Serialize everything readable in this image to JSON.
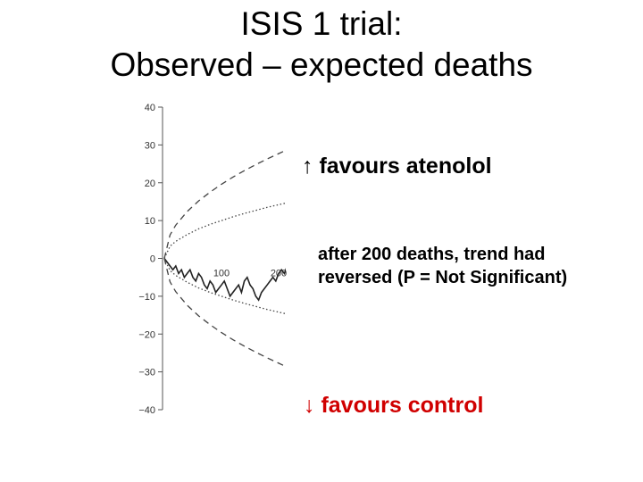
{
  "title_lines": [
    "ISIS 1 trial:",
    "Observed – expected deaths"
  ],
  "annotations": {
    "favours_atenolol": "↑ favours atenolol",
    "note": "after 200 deaths, trend had reversed (P = Not Significant)",
    "favours_control": "↓ favours control"
  },
  "colors": {
    "favours_control": "#d00000"
  },
  "chart_data": {
    "type": "line",
    "title": "",
    "xlabel": "",
    "ylabel": "",
    "ylim": [
      -40,
      40
    ],
    "xlim": [
      0,
      220
    ],
    "yticks": [
      40,
      30,
      20,
      10,
      0,
      -10,
      -20,
      -30,
      -40
    ],
    "ytick_labels": [
      "40",
      "30",
      "20",
      "10",
      "0",
      "−10",
      "−20",
      "−30",
      "−40"
    ],
    "xticks": [
      100,
      200
    ],
    "xtick_labels": [
      "100",
      "200"
    ],
    "series": [
      {
        "style": "solid",
        "x": [
          0,
          5,
          10,
          15,
          20,
          25,
          30,
          35,
          40,
          45,
          50,
          55,
          60,
          65,
          70,
          75,
          80,
          85,
          90,
          95,
          100,
          105,
          110,
          115,
          120,
          125,
          130,
          135,
          140,
          145,
          150,
          155,
          160,
          165,
          170,
          175,
          180,
          185,
          190,
          195,
          200,
          205,
          210,
          215
        ],
        "y": [
          0,
          -1,
          -2,
          -3,
          -2,
          -4,
          -3,
          -5,
          -4,
          -3,
          -5,
          -6,
          -4,
          -5,
          -7,
          -8,
          -6,
          -7,
          -9,
          -8,
          -7,
          -6,
          -8,
          -10,
          -9,
          -8,
          -7,
          -9,
          -6,
          -5,
          -7,
          -8,
          -10,
          -11,
          -9,
          -8,
          -7,
          -6,
          -5,
          -6,
          -4,
          -3,
          -4,
          -2
        ]
      },
      {
        "style": "dashed",
        "x": [
          0,
          10,
          20,
          40,
          60,
          80,
          100,
          120,
          140,
          160,
          180,
          200,
          220
        ],
        "y": [
          0,
          6.2,
          8.8,
          12.4,
          15.2,
          17.5,
          19.6,
          21.5,
          23.2,
          24.8,
          26.3,
          27.7,
          29.1
        ]
      },
      {
        "style": "dashed",
        "x": [
          0,
          10,
          20,
          40,
          60,
          80,
          100,
          120,
          140,
          160,
          180,
          200,
          220
        ],
        "y": [
          0,
          -6.2,
          -8.8,
          -12.4,
          -15.2,
          -17.5,
          -19.6,
          -21.5,
          -23.2,
          -24.8,
          -26.3,
          -27.7,
          -29.1
        ]
      },
      {
        "style": "dotted",
        "x": [
          0,
          10,
          20,
          40,
          60,
          80,
          100,
          120,
          140,
          160,
          180,
          200,
          220
        ],
        "y": [
          0,
          3.2,
          4.5,
          6.3,
          7.8,
          9.0,
          10.0,
          11.0,
          11.9,
          12.7,
          13.5,
          14.2,
          14.9
        ]
      },
      {
        "style": "dotted",
        "x": [
          0,
          10,
          20,
          40,
          60,
          80,
          100,
          120,
          140,
          160,
          180,
          200,
          220
        ],
        "y": [
          0,
          -3.2,
          -4.5,
          -6.3,
          -7.8,
          -9.0,
          -10.0,
          -11.0,
          -11.9,
          -12.7,
          -13.5,
          -14.2,
          -14.9
        ]
      }
    ]
  }
}
